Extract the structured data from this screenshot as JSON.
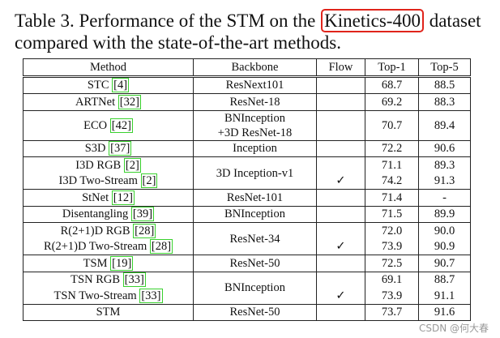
{
  "caption": {
    "before": "Table 3. Performance of the STM on the",
    "highlight": "Kinetics-400",
    "after": "dataset compared with the state-of-the-art methods."
  },
  "headers": [
    "Method",
    "Backbone",
    "Flow",
    "Top-1",
    "Top-5"
  ],
  "rows": [
    {
      "method": "STC",
      "ref": "4",
      "backbone": "ResNext101",
      "flow": "",
      "top1": "68.7",
      "top5": "88.5"
    },
    {
      "method": "ARTNet",
      "ref": "32",
      "backbone": "ResNet-18",
      "flow": "",
      "top1": "69.2",
      "top5": "88.3"
    },
    {
      "method": "ECO",
      "ref": "42",
      "backbone_l1": "BNInception",
      "backbone_l2": "+3D ResNet-18",
      "flow": "",
      "top1": "70.7",
      "top5": "89.4"
    },
    {
      "method": "S3D",
      "ref": "37",
      "backbone": "Inception",
      "flow": "",
      "top1": "72.2",
      "top5": "90.6"
    },
    {
      "method": "I3D RGB",
      "ref": "2",
      "backbone": "3D Inception-v1",
      "flow": "",
      "top1": "71.1",
      "top5": "89.3"
    },
    {
      "method": "I3D Two-Stream",
      "ref": "2",
      "flow": "✓",
      "top1": "74.2",
      "top5": "91.3"
    },
    {
      "method": "StNet",
      "ref": "12",
      "backbone": "ResNet-101",
      "flow": "",
      "top1": "71.4",
      "top5": "-"
    },
    {
      "method": "Disentangling",
      "ref": "39",
      "backbone": "BNInception",
      "flow": "",
      "top1": "71.5",
      "top5": "89.9"
    },
    {
      "method": "R(2+1)D RGB",
      "ref": "28",
      "backbone": "ResNet-34",
      "flow": "",
      "top1": "72.0",
      "top5": "90.0"
    },
    {
      "method": "R(2+1)D Two-Stream",
      "ref": "28",
      "flow": "✓",
      "top1": "73.9",
      "top5": "90.9"
    },
    {
      "method": "TSM",
      "ref": "19",
      "backbone": "ResNet-50",
      "flow": "",
      "top1": "72.5",
      "top5": "90.7"
    },
    {
      "method": "TSN RGB",
      "ref": "33",
      "backbone": "BNInception",
      "flow": "",
      "top1": "69.1",
      "top5": "88.7"
    },
    {
      "method": "TSN Two-Stream",
      "ref": "33",
      "flow": "✓",
      "top1": "73.9",
      "top5": "91.1"
    },
    {
      "method": "STM",
      "backbone": "ResNet-50",
      "flow": "",
      "top1": "73.7",
      "top5": "91.6"
    }
  ],
  "watermark": "CSDN @何大春"
}
